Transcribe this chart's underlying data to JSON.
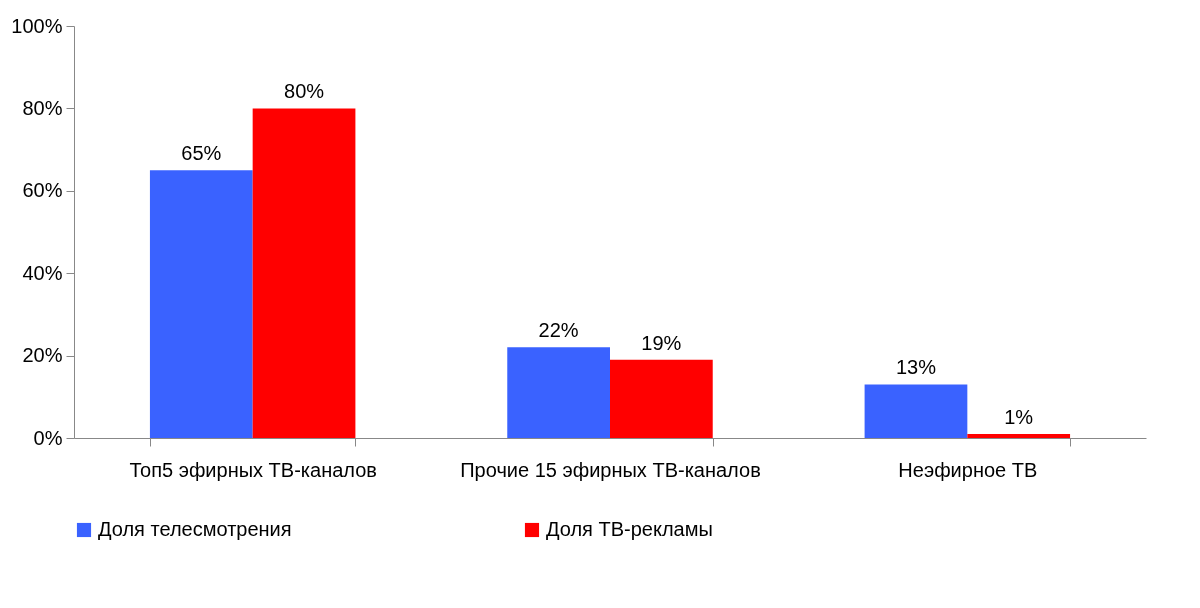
{
  "chart_data": {
    "type": "bar",
    "categories": [
      "Топ5 эфирных ТВ-каналов",
      "Прочие 15 эфирных ТВ-каналов",
      "Неэфирное ТВ"
    ],
    "series": [
      {
        "name": "Доля телесмотрения",
        "color": "#3a62ff",
        "values": [
          65,
          22,
          13
        ],
        "value_labels": [
          "65%",
          "22%",
          "13%"
        ]
      },
      {
        "name": "Доля ТВ-рекламы",
        "color": "#ff0000",
        "values": [
          80,
          19,
          1
        ],
        "value_labels": [
          "80%",
          "19%",
          "1%"
        ]
      }
    ],
    "ylim": [
      0,
      100
    ],
    "yticks": [
      {
        "value": 0,
        "label": "0%"
      },
      {
        "value": 20,
        "label": "20%"
      },
      {
        "value": 40,
        "label": "40%"
      },
      {
        "value": 60,
        "label": "60%"
      },
      {
        "value": 80,
        "label": "80%"
      },
      {
        "value": 100,
        "label": "100%"
      }
    ],
    "grid": false,
    "legend": "bottom"
  }
}
